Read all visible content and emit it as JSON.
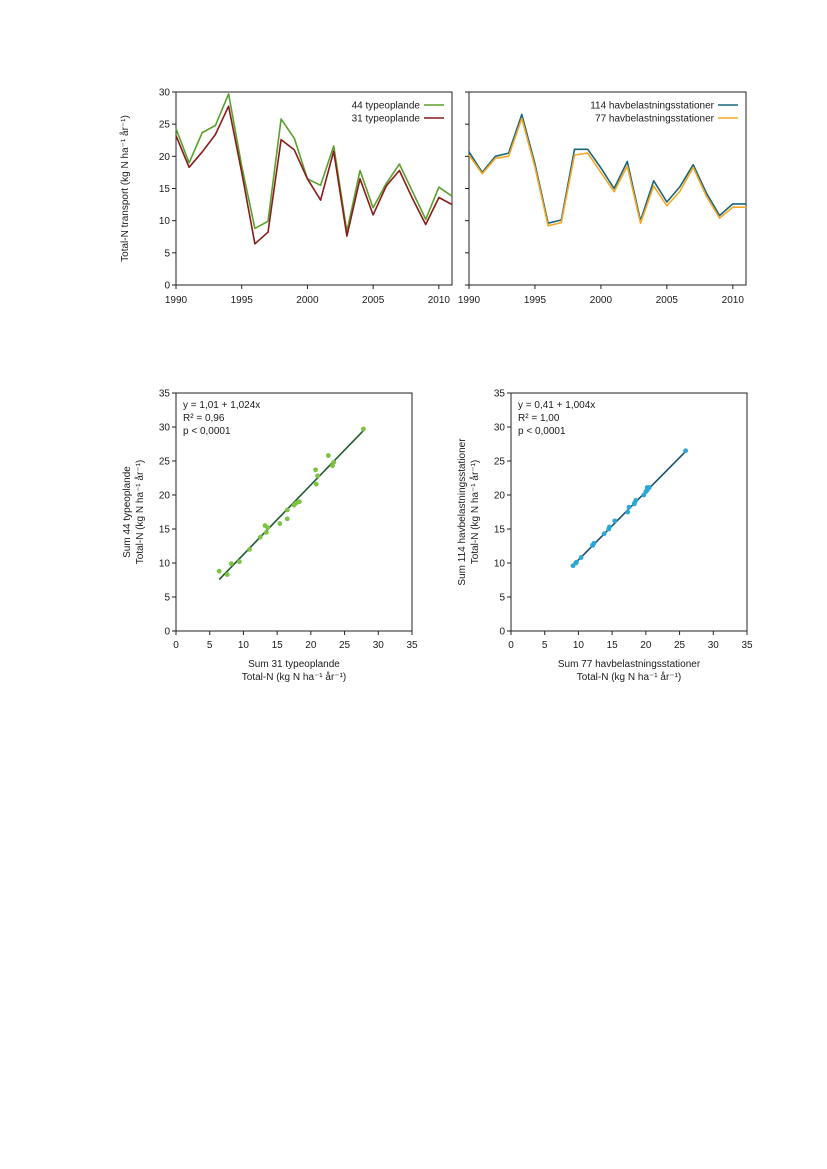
{
  "chart_data": [
    {
      "type": "line",
      "xlim": [
        1990,
        2011
      ],
      "ylim": [
        0,
        30
      ],
      "xticks": [
        1990,
        1995,
        2000,
        2005,
        2010
      ],
      "yticks": [
        0,
        5,
        10,
        15,
        20,
        25,
        30
      ],
      "ylabel": "Total-N transport (kg N ha⁻¹ år⁻¹)",
      "legend_position": "top-right",
      "x": [
        1990,
        1991,
        1992,
        1993,
        1994,
        1995,
        1996,
        1997,
        1998,
        1999,
        2000,
        2001,
        2002,
        2003,
        2004,
        2005,
        2006,
        2007,
        2008,
        2009,
        2010,
        2011
      ],
      "series": [
        {
          "name": "44 typeoplande",
          "color": "#5aa02c",
          "values": [
            24.3,
            19.0,
            23.7,
            24.8,
            29.7,
            18.5,
            8.8,
            9.9,
            25.8,
            22.8,
            16.5,
            15.5,
            21.6,
            8.3,
            17.8,
            12.0,
            15.8,
            18.8,
            14.5,
            10.2,
            15.2,
            13.8
          ]
        },
        {
          "name": "31 typeoplande",
          "color": "#8b1a1a",
          "values": [
            23.2,
            18.3,
            20.7,
            23.4,
            27.8,
            17.5,
            6.4,
            8.2,
            22.6,
            21.0,
            16.5,
            13.2,
            20.8,
            7.6,
            16.5,
            10.9,
            15.4,
            17.8,
            13.4,
            9.4,
            13.6,
            12.5
          ]
        }
      ]
    },
    {
      "type": "line",
      "xlim": [
        1990,
        2011
      ],
      "ylim": [
        0,
        30
      ],
      "xticks": [
        1990,
        1995,
        2000,
        2005,
        2010
      ],
      "yticks": [
        0,
        5,
        10,
        15,
        20,
        25,
        30
      ],
      "legend_position": "top-right",
      "x": [
        1990,
        1991,
        1992,
        1993,
        1994,
        1995,
        1996,
        1997,
        1998,
        1999,
        2000,
        2001,
        2002,
        2003,
        2004,
        2005,
        2006,
        2007,
        2008,
        2009,
        2010,
        2011
      ],
      "series": [
        {
          "name": "114 havbelastningsstationer",
          "color": "#17667a",
          "values": [
            20.7,
            17.5,
            20.0,
            20.5,
            26.5,
            18.8,
            9.6,
            10.1,
            21.1,
            21.1,
            18.2,
            15.0,
            19.2,
            10.0,
            16.2,
            12.9,
            15.3,
            18.7,
            14.3,
            10.8,
            12.6,
            12.6
          ]
        },
        {
          "name": "77 havbelastningsstationer",
          "color": "#f5a623",
          "values": [
            20.2,
            17.3,
            19.7,
            20.0,
            25.9,
            18.3,
            9.2,
            9.7,
            20.2,
            20.5,
            17.5,
            14.5,
            18.5,
            9.6,
            15.4,
            12.3,
            14.6,
            18.3,
            13.8,
            10.4,
            12.1,
            12.1
          ]
        }
      ]
    },
    {
      "type": "scatter",
      "xlim": [
        0,
        35
      ],
      "ylim": [
        0,
        35
      ],
      "xticks": [
        0,
        5,
        10,
        15,
        20,
        25,
        30,
        35
      ],
      "yticks": [
        0,
        5,
        10,
        15,
        20,
        25,
        30,
        35
      ],
      "xlabel_line1": "Sum 31 typeoplande",
      "xlabel_line2": "Total-N (kg N ha⁻¹ år⁻¹)",
      "ylabel_line1": "Sum 44 typeoplande",
      "ylabel_line2": "Total-N (kg N ha⁻¹ år⁻¹)",
      "annotations": [
        "y = 1,01 + 1,024x",
        "R² = 0,96",
        "p < 0,0001"
      ],
      "point_color": "#7dc242",
      "line_color": "#1f5c2e",
      "regression": {
        "intercept": 1.01,
        "slope": 1.024,
        "x_range": [
          6.4,
          27.8
        ]
      },
      "points": [
        [
          23.2,
          24.3
        ],
        [
          18.3,
          19.0
        ],
        [
          20.7,
          23.7
        ],
        [
          23.4,
          24.8
        ],
        [
          27.8,
          29.7
        ],
        [
          17.5,
          18.5
        ],
        [
          6.4,
          8.8
        ],
        [
          8.2,
          9.9
        ],
        [
          22.6,
          25.8
        ],
        [
          21.0,
          22.8
        ],
        [
          16.5,
          16.5
        ],
        [
          13.2,
          15.5
        ],
        [
          20.8,
          21.6
        ],
        [
          7.6,
          8.3
        ],
        [
          16.5,
          17.8
        ],
        [
          10.9,
          12.0
        ],
        [
          15.4,
          15.8
        ],
        [
          17.8,
          18.8
        ],
        [
          13.4,
          14.5
        ],
        [
          9.4,
          10.2
        ],
        [
          13.6,
          15.2
        ],
        [
          12.5,
          13.8
        ]
      ]
    },
    {
      "type": "scatter",
      "xlim": [
        0,
        35
      ],
      "ylim": [
        0,
        35
      ],
      "xticks": [
        0,
        5,
        10,
        15,
        20,
        25,
        30,
        35
      ],
      "yticks": [
        0,
        5,
        10,
        15,
        20,
        25,
        30,
        35
      ],
      "xlabel_line1": "Sum 77 havbelastningsstationer",
      "xlabel_line2": "Total-N (kg N ha⁻¹ år⁻¹)",
      "ylabel_line1": "Sum 114 havbelastningsstationer",
      "ylabel_line2": "Total-N (kg N ha⁻¹ år⁻¹)",
      "annotations": [
        "y = 0,41 + 1,004x",
        "R² = 1,00",
        "p < 0,0001"
      ],
      "point_color": "#29a8d6",
      "line_color": "#1a4f6e",
      "regression": {
        "intercept": 0.41,
        "slope": 1.004,
        "x_range": [
          9.2,
          25.9
        ]
      },
      "points": [
        [
          20.2,
          20.7
        ],
        [
          17.3,
          17.5
        ],
        [
          19.7,
          20.0
        ],
        [
          20.0,
          20.5
        ],
        [
          25.9,
          26.5
        ],
        [
          18.3,
          18.8
        ],
        [
          9.2,
          9.6
        ],
        [
          9.7,
          10.1
        ],
        [
          20.2,
          21.1
        ],
        [
          20.5,
          21.1
        ],
        [
          17.5,
          18.2
        ],
        [
          14.5,
          15.0
        ],
        [
          18.5,
          19.2
        ],
        [
          9.6,
          10.0
        ],
        [
          15.4,
          16.2
        ],
        [
          12.3,
          12.9
        ],
        [
          14.6,
          15.3
        ],
        [
          18.3,
          18.7
        ],
        [
          13.8,
          14.3
        ],
        [
          10.4,
          10.8
        ],
        [
          12.1,
          12.6
        ],
        [
          12.1,
          12.6
        ]
      ]
    }
  ]
}
